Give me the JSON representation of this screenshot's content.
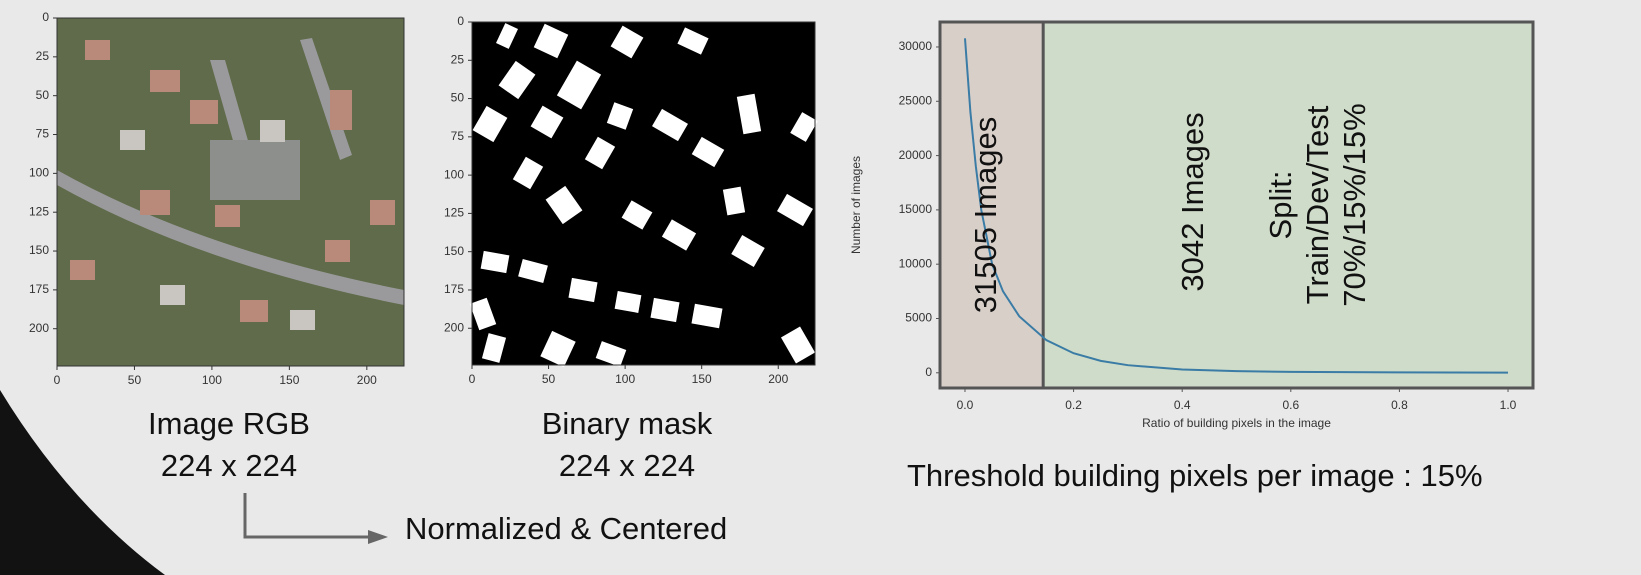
{
  "chart_data": [
    {
      "type": "image",
      "xlim": [
        0,
        224
      ],
      "ylim": [
        224,
        0
      ],
      "xticks": [
        0,
        50,
        100,
        150,
        200
      ],
      "yticks": [
        0,
        25,
        50,
        75,
        100,
        125,
        150,
        175,
        200
      ],
      "caption": [
        "Image RGB",
        "224 x 224"
      ]
    },
    {
      "type": "image",
      "xlim": [
        0,
        224
      ],
      "ylim": [
        224,
        0
      ],
      "xticks": [
        0,
        50,
        100,
        150,
        200
      ],
      "yticks": [
        0,
        25,
        50,
        75,
        100,
        125,
        150,
        175,
        200
      ],
      "caption": [
        "Binary mask",
        "224 x 224"
      ]
    },
    {
      "type": "line",
      "xlabel": "Ratio of building pixels in the image",
      "ylabel": "Number of images",
      "x": [
        0,
        0.01,
        0.02,
        0.03,
        0.05,
        0.07,
        0.1,
        0.15,
        0.2,
        0.25,
        0.3,
        0.4,
        0.5,
        0.6,
        0.7,
        0.8,
        0.9,
        1.0
      ],
      "series": [
        {
          "color": "#3a7ca5",
          "values": [
            30800,
            24000,
            19000,
            15000,
            10000,
            7500,
            5200,
            3000,
            1800,
            1100,
            700,
            300,
            150,
            90,
            60,
            40,
            25,
            10
          ]
        }
      ],
      "xlim": [
        -0.046,
        1.046
      ],
      "ylim": [
        -1400,
        32300
      ],
      "xticks": [
        {
          "value": 0,
          "label": "0.0"
        },
        0.2,
        0.4,
        0.6,
        0.8,
        {
          "value": 1,
          "label": "1.0"
        }
      ],
      "yticks": [
        0,
        5000,
        10000,
        15000,
        20000,
        25000,
        30000
      ],
      "vline": 0.144,
      "region_colors": [
        "#d9cfc9",
        "#cfdcc9"
      ],
      "annotations": [
        "31505 Images",
        "3042 Images",
        [
          "Split:",
          "Train/Dev/Test",
          "70%/15%/15%"
        ]
      ]
    }
  ],
  "threshold_note": "Threshold building pixels per image : 15%",
  "arrow_label": "Normalized & Centered"
}
